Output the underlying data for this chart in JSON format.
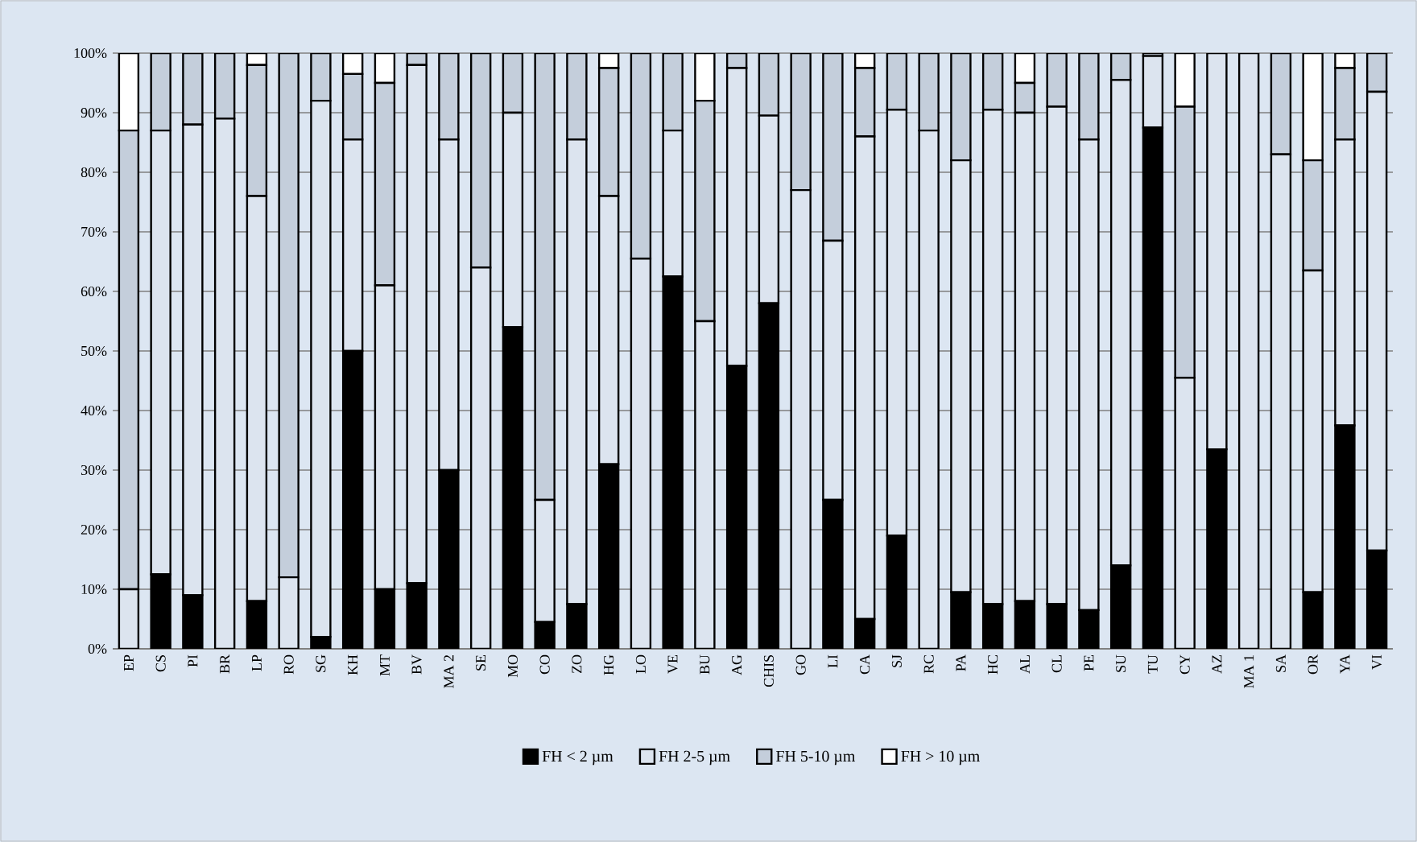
{
  "chart_data": {
    "type": "bar",
    "stacked": true,
    "grid": "y",
    "legend": "bottom",
    "categories": [
      "EP",
      "CS",
      "PI",
      "BR",
      "LP",
      "RO",
      "SG",
      "KH",
      "MT",
      "BV",
      "MA 2",
      "SE",
      "MO",
      "CO",
      "ZO",
      "HG",
      "LO",
      "VE",
      "BU",
      "AG",
      "CHIS",
      "GO",
      "LI",
      "CA",
      "SJ",
      "RC",
      "PA",
      "HC",
      "AL",
      "CL",
      "PE",
      "SU",
      "TU",
      "CY",
      "AZ",
      "MA 1",
      "SA",
      "OR",
      "YA",
      "VI"
    ],
    "ylim": [
      0,
      100
    ],
    "yticks": [
      {
        "value": 0,
        "label": "0%"
      },
      {
        "value": 10,
        "label": "10%"
      },
      {
        "value": 20,
        "label": "20%"
      },
      {
        "value": 30,
        "label": "30%"
      },
      {
        "value": 40,
        "label": "40%"
      },
      {
        "value": 50,
        "label": "50%"
      },
      {
        "value": 60,
        "label": "60%"
      },
      {
        "value": 70,
        "label": "70%"
      },
      {
        "value": 80,
        "label": "80%"
      },
      {
        "value": 90,
        "label": "90%"
      },
      {
        "value": 100,
        "label": "100%"
      }
    ],
    "series": [
      {
        "name": "FH < 2 µm",
        "color": "#000000",
        "values": [
          0,
          12.5,
          9,
          0,
          8,
          0,
          2,
          50,
          10,
          11,
          30,
          0,
          54,
          4.5,
          7.5,
          31,
          0,
          62.5,
          0,
          47.5,
          58,
          0,
          25,
          5,
          19,
          0,
          9.5,
          7.5,
          8,
          7.5,
          6.5,
          14,
          87.5,
          0,
          33.5,
          0,
          0,
          9.5,
          37.5,
          16.5
        ]
      },
      {
        "name": "FH 2-5 µm",
        "color": "#dce4ef",
        "values": [
          10,
          74.5,
          79,
          89,
          68,
          12,
          90,
          35.5,
          51,
          87,
          55.5,
          64,
          36,
          20.5,
          78,
          45,
          65.5,
          24.5,
          55,
          50,
          31.5,
          77,
          43.5,
          81,
          71.5,
          87,
          72.5,
          83,
          82,
          83.5,
          79,
          81.5,
          12,
          45.5,
          66.5,
          100,
          83,
          54,
          48,
          77
        ]
      },
      {
        "name": "FH 5-10 µm",
        "color": "#c4cedb",
        "values": [
          77,
          13,
          12,
          11,
          22,
          88,
          8,
          11,
          34,
          2,
          14.5,
          36,
          10,
          75,
          14.5,
          21.5,
          34.5,
          13,
          37,
          2.5,
          10.5,
          23,
          31.5,
          11.5,
          9.5,
          13,
          18,
          9.5,
          5,
          9,
          14.5,
          4.5,
          0.5,
          45.5,
          0,
          0,
          17,
          18.5,
          12,
          6.5
        ]
      },
      {
        "name": "FH > 10 µm",
        "color": "#ffffff",
        "values": [
          13,
          0,
          0,
          0,
          2,
          0,
          0,
          3.5,
          5,
          0,
          0,
          0,
          0,
          0,
          0,
          2.5,
          0,
          0,
          8,
          0,
          0,
          0,
          0,
          2.5,
          0,
          0,
          0,
          0,
          5,
          0,
          0,
          0,
          0,
          9,
          0,
          0,
          0,
          18,
          2.5,
          0
        ]
      }
    ]
  }
}
